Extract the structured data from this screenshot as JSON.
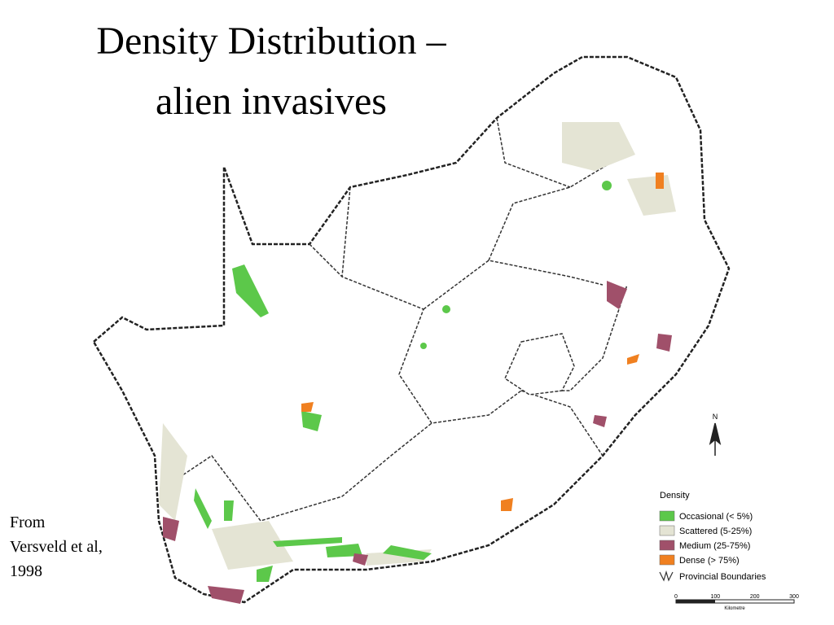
{
  "slide": {
    "title": [
      "Density Distribution –",
      "alien invasives"
    ],
    "source": [
      "From",
      "Versveld et al,",
      "1998"
    ],
    "legend": {
      "title": "Density",
      "items": [
        {
          "label": "Occasional (< 5%)",
          "color": "#5cc84a"
        },
        {
          "label": "Scattered (5-25%)",
          "color": "#e4e4d4"
        },
        {
          "label": "Medium (25-75%)",
          "color": "#a0506a"
        },
        {
          "label": "Dense (> 75%)",
          "color": "#f08020"
        }
      ],
      "boundaries": "Provincial Boundaries"
    },
    "north": "N",
    "scale": {
      "ticks": [
        "0",
        "100",
        "200",
        "300"
      ],
      "unit": "Kilometre"
    }
  }
}
